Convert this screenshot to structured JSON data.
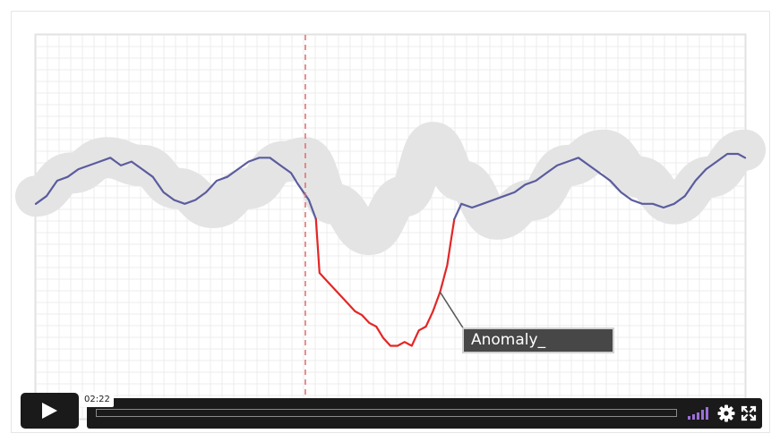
{
  "annotation": {
    "label": "Anomaly_"
  },
  "player": {
    "current_time": "02:22",
    "progress_fraction": 0.0,
    "icons": [
      "play-icon",
      "volume-icon",
      "settings-icon",
      "fullscreen-icon"
    ]
  },
  "chart_data": {
    "type": "line",
    "grid": true,
    "legend": "none",
    "colors": {
      "normal": "#5b5c9e",
      "anomaly": "#e32626",
      "band": "#e4e4e4",
      "marker": "#e06c6c",
      "grid": "#ececec"
    },
    "xlim": [
      0,
      100
    ],
    "ylim": [
      0,
      100
    ],
    "marker_x": 38,
    "band": {
      "x": [
        0,
        5,
        10,
        15,
        20,
        25,
        30,
        35,
        38,
        42,
        47,
        52,
        56,
        60,
        65,
        70,
        75,
        80,
        85,
        90,
        95,
        100
      ],
      "y": [
        58,
        64,
        68,
        66,
        60,
        55,
        60,
        67,
        68,
        56,
        48,
        58,
        72,
        62,
        52,
        57,
        66,
        70,
        63,
        56,
        63,
        70
      ]
    },
    "series": [
      {
        "x": [
          0,
          1.5,
          3,
          4.5,
          6,
          7.5,
          9,
          10.5,
          12,
          13.5,
          15,
          16.5,
          18,
          19.5,
          21,
          22.5,
          24,
          25.5,
          27,
          28.5,
          30,
          31.5,
          33,
          34.5,
          36,
          37,
          38.5,
          39.5
        ],
        "y": [
          56,
          58,
          62,
          63,
          65,
          66,
          67,
          68,
          66,
          67,
          65,
          63,
          59,
          57,
          56,
          57,
          59,
          62,
          63,
          65,
          67,
          68,
          68,
          66,
          64,
          61,
          57,
          52
        ]
      },
      {
        "x": [
          39.5,
          40,
          41,
          42,
          43,
          44,
          45,
          46,
          47,
          48,
          49,
          50,
          51,
          52,
          53,
          54,
          55,
          56,
          57,
          58,
          58.5,
          59
        ],
        "y": [
          52,
          38,
          36,
          34,
          32,
          30,
          28,
          27,
          25,
          24,
          21,
          19,
          19,
          20,
          19,
          23,
          24,
          28,
          33,
          40,
          46,
          52
        ]
      },
      {
        "x": [
          59,
          60,
          61.5,
          63,
          64.5,
          66,
          67.5,
          69,
          70.5,
          72,
          73.5,
          75,
          76.5,
          78,
          79.5,
          81,
          82.5,
          84,
          85.5,
          87,
          88.5,
          90,
          91.5,
          93,
          94.5,
          96,
          97.5,
          99,
          100
        ],
        "y": [
          52,
          56,
          55,
          56,
          57,
          58,
          59,
          61,
          62,
          64,
          66,
          67,
          68,
          66,
          64,
          62,
          59,
          57,
          56,
          56,
          55,
          56,
          58,
          62,
          65,
          67,
          69,
          69,
          68
        ]
      }
    ]
  }
}
